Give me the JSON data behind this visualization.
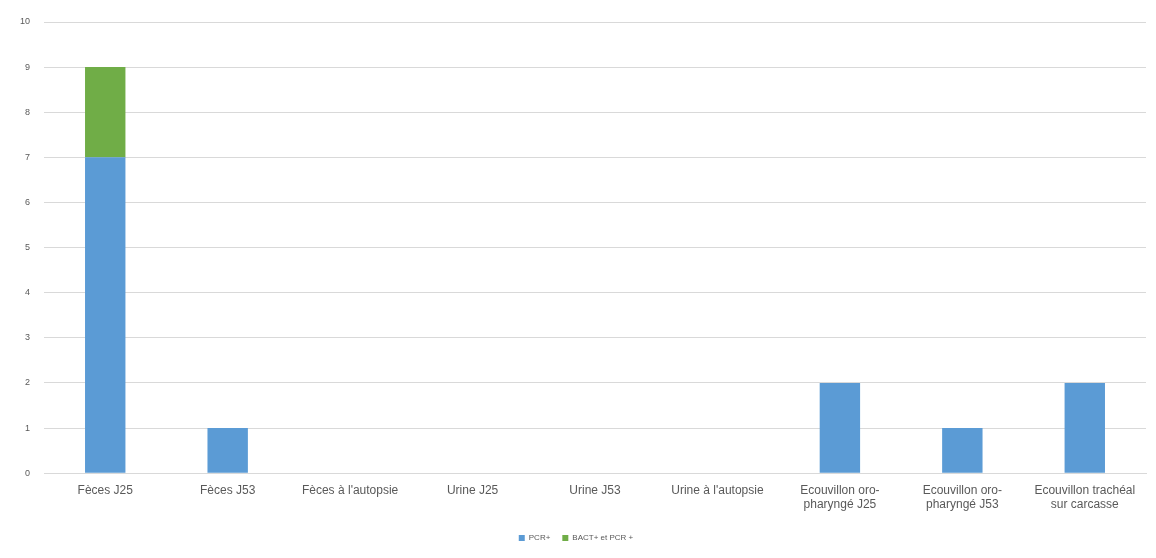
{
  "chart_data": {
    "type": "bar",
    "stacked": true,
    "categories": [
      "Fèces J25",
      "Fèces J53",
      "Fèces à l'autopsie",
      "Urine J25",
      "Urine J53",
      "Urine à l'autopsie",
      "Ecouvillon oro-pharyngé J25",
      "Ecouvillon oro-pharyngé J53",
      "Ecouvillon trachéal sur carcasse"
    ],
    "series": [
      {
        "name": "PCR+",
        "color": "#5b9bd5",
        "values": [
          7,
          1,
          0,
          0,
          0,
          0,
          2,
          1,
          2
        ]
      },
      {
        "name": "BACT+ et PCR +",
        "color": "#70ad47",
        "values": [
          2,
          0,
          0,
          0,
          0,
          0,
          0,
          0,
          0
        ]
      }
    ],
    "ylim": [
      0,
      10
    ],
    "yticks": [
      0,
      1,
      2,
      3,
      4,
      5,
      6,
      7,
      8,
      9,
      10
    ],
    "grid": "y",
    "legend": "bottom"
  }
}
